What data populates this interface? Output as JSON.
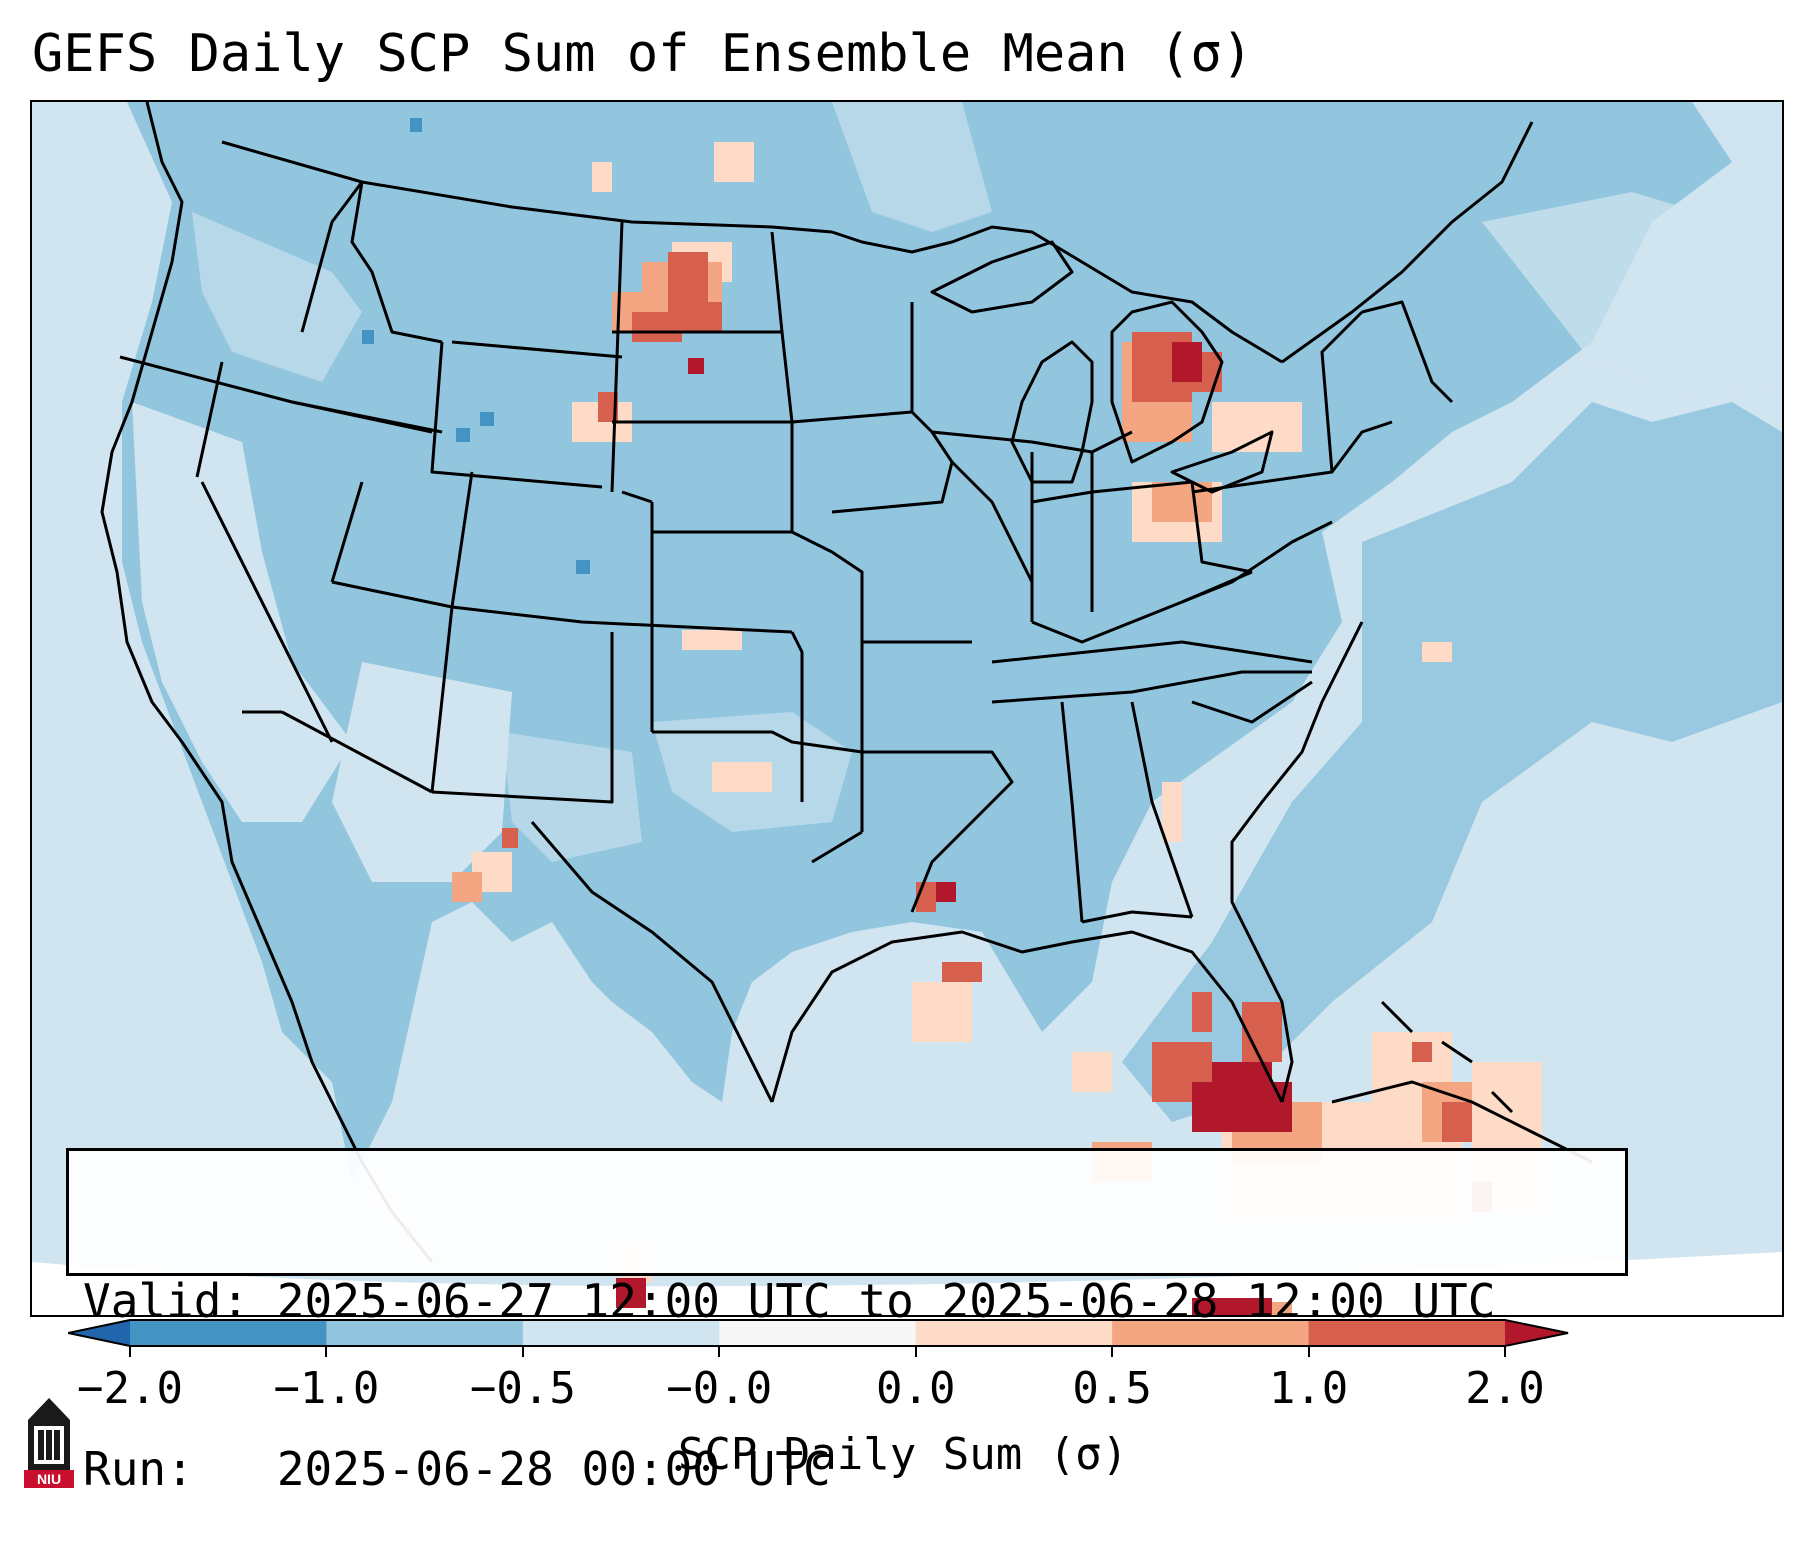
{
  "title": "GEFS Daily SCP Sum of Ensemble Mean (σ)",
  "info": {
    "valid": "Valid: 2025-06-27 12:00 UTC to 2025-06-28 12:00 UTC",
    "run": "Run:   2025-06-28 00:00 UTC"
  },
  "colorbar": {
    "label": "SCP Daily Sum (σ)",
    "ticks": [
      "−2.0",
      "−1.0",
      "−0.5",
      "−0.0",
      "0.0",
      "0.5",
      "1.0",
      "2.0"
    ],
    "colors": [
      "#4393c3",
      "#92c5de",
      "#d1e5f0",
      "#f7f7f7",
      "#fddbc7",
      "#f4a582",
      "#d6604d"
    ],
    "under_color": "#2166ac",
    "over_color": "#b2182b"
  },
  "logo": {
    "text": "NIU"
  },
  "map": {
    "hotspots": [
      {
        "region": "Western North Dakota",
        "category": "1.0 to 2.0"
      },
      {
        "region": "Northern Lower Michigan",
        "category": "1.0 to 2.0"
      },
      {
        "region": "Southern Florida",
        "category": "above 2.0"
      },
      {
        "region": "Northern Louisiana",
        "category": "above 2.0"
      },
      {
        "region": "Bahamas",
        "category": "0.5 to 1.0"
      }
    ]
  }
}
